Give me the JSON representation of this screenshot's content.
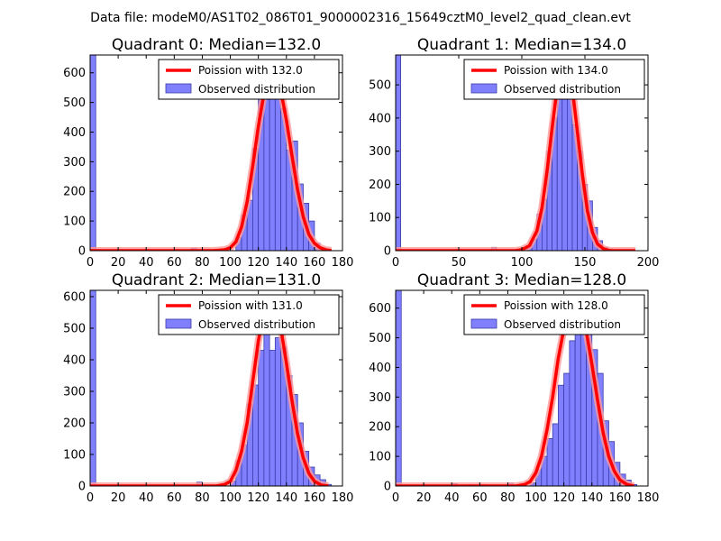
{
  "suptitle": "Data file: modeM0/AS1T02_086T01_9000002316_15649cztM0_level2_quad_clean.evt",
  "colors": {
    "bar_fill": "#8080ff",
    "bar_edge": "#3b3ba8",
    "curve": "#ff0000",
    "curve_halo": "#ff9a9a"
  },
  "chart_data": [
    {
      "type": "bar",
      "title": "Quadrant 0: Median=132.0",
      "xlim": [
        0,
        180
      ],
      "ylim": [
        0,
        660
      ],
      "xticks": [
        0,
        20,
        40,
        60,
        80,
        100,
        120,
        140,
        160,
        180
      ],
      "yticks": [
        0,
        100,
        200,
        300,
        400,
        500,
        600
      ],
      "legend": {
        "curve_label": "Poission with 132.0",
        "bar_label": "Observed distribution",
        "placement": "top-right"
      },
      "bin_width": 4,
      "bars": [
        [
          0,
          660
        ],
        [
          72,
          8
        ],
        [
          104,
          45
        ],
        [
          108,
          120
        ],
        [
          112,
          170
        ],
        [
          116,
          345
        ],
        [
          120,
          520
        ],
        [
          124,
          510
        ],
        [
          128,
          600
        ],
        [
          132,
          640
        ],
        [
          136,
          480
        ],
        [
          140,
          340
        ],
        [
          144,
          370
        ],
        [
          148,
          225
        ],
        [
          152,
          160
        ],
        [
          156,
          100
        ],
        [
          160,
          25
        ],
        [
          164,
          10
        ],
        [
          168,
          5
        ]
      ],
      "curve": [
        [
          0,
          0
        ],
        [
          88,
          0
        ],
        [
          96,
          3
        ],
        [
          100,
          10
        ],
        [
          104,
          30
        ],
        [
          108,
          80
        ],
        [
          112,
          165
        ],
        [
          116,
          285
        ],
        [
          120,
          420
        ],
        [
          124,
          530
        ],
        [
          128,
          590
        ],
        [
          132,
          590
        ],
        [
          136,
          540
        ],
        [
          140,
          440
        ],
        [
          144,
          320
        ],
        [
          148,
          205
        ],
        [
          152,
          115
        ],
        [
          156,
          55
        ],
        [
          160,
          25
        ],
        [
          164,
          10
        ],
        [
          168,
          3
        ],
        [
          172,
          0
        ]
      ]
    },
    {
      "type": "bar",
      "title": "Quadrant 1: Median=134.0",
      "xlim": [
        0,
        200
      ],
      "ylim": [
        0,
        590
      ],
      "xticks": [
        0,
        50,
        100,
        150,
        200
      ],
      "yticks": [
        0,
        100,
        200,
        300,
        400,
        500
      ],
      "legend": {
        "curve_label": "Poission with 134.0",
        "bar_label": "Observed distribution",
        "placement": "top-right"
      },
      "bin_width": 4,
      "bars": [
        [
          0,
          590
        ],
        [
          76,
          10
        ],
        [
          100,
          3
        ],
        [
          104,
          15
        ],
        [
          108,
          35
        ],
        [
          112,
          110
        ],
        [
          116,
          155
        ],
        [
          120,
          300
        ],
        [
          124,
          400
        ],
        [
          128,
          470
        ],
        [
          132,
          510
        ],
        [
          136,
          470
        ],
        [
          140,
          380
        ],
        [
          144,
          300
        ],
        [
          148,
          200
        ],
        [
          152,
          150
        ],
        [
          156,
          70
        ],
        [
          160,
          30
        ],
        [
          164,
          10
        ],
        [
          168,
          5
        ]
      ],
      "curve": [
        [
          0,
          0
        ],
        [
          95,
          0
        ],
        [
          100,
          3
        ],
        [
          106,
          15
        ],
        [
          112,
          60
        ],
        [
          116,
          130
        ],
        [
          120,
          240
        ],
        [
          124,
          370
        ],
        [
          128,
          490
        ],
        [
          132,
          560
        ],
        [
          136,
          560
        ],
        [
          140,
          490
        ],
        [
          144,
          360
        ],
        [
          148,
          230
        ],
        [
          152,
          120
        ],
        [
          156,
          55
        ],
        [
          160,
          20
        ],
        [
          165,
          5
        ],
        [
          170,
          0
        ],
        [
          190,
          0
        ]
      ]
    },
    {
      "type": "bar",
      "title": "Quadrant 2: Median=131.0",
      "xlim": [
        0,
        180
      ],
      "ylim": [
        0,
        620
      ],
      "xticks": [
        0,
        20,
        40,
        60,
        80,
        100,
        120,
        140,
        160,
        180
      ],
      "yticks": [
        0,
        100,
        200,
        300,
        400,
        500,
        600
      ],
      "legend": {
        "curve_label": "Poission with 131.0",
        "bar_label": "Observed distribution",
        "placement": "top-right"
      },
      "bin_width": 4,
      "bars": [
        [
          0,
          620
        ],
        [
          76,
          12
        ],
        [
          100,
          15
        ],
        [
          104,
          80
        ],
        [
          108,
          130
        ],
        [
          112,
          260
        ],
        [
          116,
          320
        ],
        [
          120,
          430
        ],
        [
          124,
          540
        ],
        [
          128,
          430
        ],
        [
          132,
          470
        ],
        [
          136,
          440
        ],
        [
          140,
          350
        ],
        [
          144,
          290
        ],
        [
          148,
          200
        ],
        [
          152,
          110
        ],
        [
          156,
          60
        ],
        [
          160,
          35
        ],
        [
          164,
          20
        ],
        [
          168,
          5
        ]
      ],
      "curve": [
        [
          0,
          0
        ],
        [
          90,
          0
        ],
        [
          96,
          5
        ],
        [
          100,
          15
        ],
        [
          104,
          50
        ],
        [
          108,
          110
        ],
        [
          112,
          200
        ],
        [
          116,
          330
        ],
        [
          120,
          460
        ],
        [
          124,
          550
        ],
        [
          128,
          590
        ],
        [
          132,
          570
        ],
        [
          136,
          500
        ],
        [
          140,
          390
        ],
        [
          144,
          270
        ],
        [
          148,
          165
        ],
        [
          152,
          90
        ],
        [
          156,
          40
        ],
        [
          160,
          15
        ],
        [
          165,
          3
        ],
        [
          170,
          0
        ]
      ]
    },
    {
      "type": "bar",
      "title": "Quadrant 3: Median=128.0",
      "xlim": [
        0,
        180
      ],
      "ylim": [
        0,
        660
      ],
      "xticks": [
        0,
        20,
        40,
        60,
        80,
        100,
        120,
        140,
        160,
        180
      ],
      "yticks": [
        0,
        100,
        200,
        300,
        400,
        500,
        600
      ],
      "legend": {
        "curve_label": "Poission with 128.0",
        "bar_label": "Observed distribution",
        "placement": "top-right"
      },
      "bin_width": 4,
      "bars": [
        [
          0,
          660
        ],
        [
          40,
          8
        ],
        [
          52,
          5
        ],
        [
          60,
          5
        ],
        [
          80,
          10
        ],
        [
          96,
          10
        ],
        [
          100,
          55
        ],
        [
          104,
          100
        ],
        [
          108,
          160
        ],
        [
          112,
          210
        ],
        [
          116,
          340
        ],
        [
          120,
          380
        ],
        [
          124,
          490
        ],
        [
          128,
          530
        ],
        [
          132,
          620
        ],
        [
          136,
          560
        ],
        [
          140,
          460
        ],
        [
          144,
          380
        ],
        [
          148,
          220
        ],
        [
          152,
          150
        ],
        [
          156,
          80
        ],
        [
          160,
          40
        ],
        [
          164,
          20
        ],
        [
          168,
          5
        ]
      ],
      "curve": [
        [
          0,
          0
        ],
        [
          86,
          0
        ],
        [
          92,
          5
        ],
        [
          96,
          15
        ],
        [
          100,
          45
        ],
        [
          104,
          100
        ],
        [
          108,
          190
        ],
        [
          112,
          300
        ],
        [
          116,
          430
        ],
        [
          120,
          530
        ],
        [
          124,
          600
        ],
        [
          128,
          620
        ],
        [
          132,
          590
        ],
        [
          136,
          520
        ],
        [
          140,
          410
        ],
        [
          144,
          290
        ],
        [
          148,
          180
        ],
        [
          152,
          100
        ],
        [
          156,
          50
        ],
        [
          160,
          20
        ],
        [
          165,
          5
        ],
        [
          170,
          0
        ]
      ]
    }
  ]
}
